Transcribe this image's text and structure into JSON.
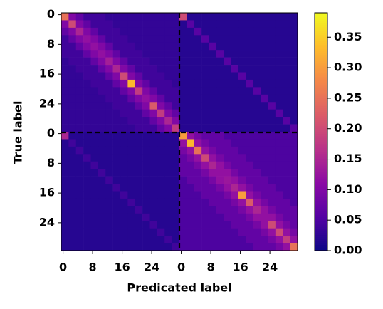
{
  "chart_data": {
    "type": "heatmap",
    "xlabel": "Predicated label",
    "ylabel": "True label",
    "xlim": [
      -0.5,
      63.5
    ],
    "ylim": [
      -0.5,
      63.5
    ],
    "cell": 2,
    "xticks": [
      0,
      8,
      16,
      24,
      {
        "value": 32,
        "label": "0"
      },
      {
        "value": 40,
        "label": "8"
      },
      {
        "value": 48,
        "label": "16"
      },
      {
        "value": 56,
        "label": "24"
      }
    ],
    "yticks": [
      0,
      8,
      16,
      24,
      {
        "value": 32,
        "label": "0"
      },
      {
        "value": 40,
        "label": "8"
      },
      {
        "value": 48,
        "label": "16"
      },
      {
        "value": 56,
        "label": "24"
      }
    ],
    "colormap": "plasma",
    "clim": [
      0,
      0.39
    ],
    "cticks": [
      {
        "value": 0,
        "label": "0.00"
      },
      {
        "value": 0.05,
        "label": "0.05"
      },
      {
        "value": 0.1,
        "label": "0.10"
      },
      {
        "value": 0.15,
        "label": "0.15"
      },
      {
        "value": 0.2,
        "label": "0.20"
      },
      {
        "value": 0.25,
        "label": "0.25"
      },
      {
        "value": 0.3,
        "label": "0.30"
      },
      {
        "value": 0.35,
        "label": "0.35"
      }
    ],
    "z": [
      [
        0.25,
        0.1,
        0.07,
        0.04,
        0.04,
        0.04,
        0.03,
        0.03,
        0.03,
        0.03,
        0.03,
        0.03,
        0.03,
        0.03,
        0.03,
        0.03,
        0.2,
        0.02,
        0.02,
        0.02,
        0.02,
        0.02,
        0.02,
        0.02,
        0.02,
        0.02,
        0.02,
        0.02,
        0.02,
        0.02,
        0.02,
        0.02
      ],
      [
        0.1,
        0.2,
        0.1,
        0.07,
        0.04,
        0.04,
        0.04,
        0.03,
        0.03,
        0.03,
        0.03,
        0.03,
        0.03,
        0.03,
        0.03,
        0.03,
        0.02,
        0.06,
        0.02,
        0.02,
        0.02,
        0.02,
        0.02,
        0.02,
        0.02,
        0.02,
        0.02,
        0.02,
        0.02,
        0.02,
        0.02,
        0.02
      ],
      [
        0.07,
        0.1,
        0.15,
        0.1,
        0.07,
        0.04,
        0.04,
        0.04,
        0.03,
        0.03,
        0.03,
        0.03,
        0.03,
        0.03,
        0.03,
        0.03,
        0.02,
        0.02,
        0.06,
        0.02,
        0.02,
        0.02,
        0.02,
        0.02,
        0.02,
        0.02,
        0.02,
        0.02,
        0.02,
        0.02,
        0.02,
        0.02
      ],
      [
        0.04,
        0.07,
        0.1,
        0.12,
        0.1,
        0.07,
        0.04,
        0.04,
        0.04,
        0.03,
        0.03,
        0.03,
        0.03,
        0.03,
        0.03,
        0.03,
        0.02,
        0.02,
        0.02,
        0.06,
        0.02,
        0.02,
        0.02,
        0.02,
        0.02,
        0.02,
        0.02,
        0.02,
        0.02,
        0.02,
        0.02,
        0.02
      ],
      [
        0.04,
        0.04,
        0.07,
        0.1,
        0.12,
        0.1,
        0.07,
        0.04,
        0.04,
        0.04,
        0.03,
        0.03,
        0.03,
        0.03,
        0.03,
        0.03,
        0.02,
        0.02,
        0.02,
        0.02,
        0.06,
        0.02,
        0.02,
        0.02,
        0.02,
        0.02,
        0.02,
        0.02,
        0.02,
        0.02,
        0.02,
        0.02
      ],
      [
        0.04,
        0.04,
        0.04,
        0.07,
        0.1,
        0.12,
        0.1,
        0.07,
        0.04,
        0.04,
        0.04,
        0.03,
        0.03,
        0.03,
        0.03,
        0.03,
        0.02,
        0.02,
        0.02,
        0.02,
        0.02,
        0.06,
        0.02,
        0.02,
        0.02,
        0.02,
        0.02,
        0.02,
        0.02,
        0.02,
        0.02,
        0.02
      ],
      [
        0.03,
        0.04,
        0.04,
        0.04,
        0.07,
        0.1,
        0.14,
        0.1,
        0.07,
        0.04,
        0.04,
        0.04,
        0.03,
        0.03,
        0.03,
        0.03,
        0.02,
        0.02,
        0.02,
        0.02,
        0.02,
        0.02,
        0.06,
        0.02,
        0.02,
        0.02,
        0.02,
        0.02,
        0.02,
        0.02,
        0.02,
        0.02
      ],
      [
        0.03,
        0.03,
        0.04,
        0.04,
        0.04,
        0.07,
        0.1,
        0.15,
        0.1,
        0.07,
        0.04,
        0.04,
        0.04,
        0.03,
        0.03,
        0.03,
        0.02,
        0.02,
        0.02,
        0.02,
        0.02,
        0.02,
        0.02,
        0.06,
        0.02,
        0.02,
        0.02,
        0.02,
        0.02,
        0.02,
        0.02,
        0.02
      ],
      [
        0.03,
        0.03,
        0.03,
        0.04,
        0.04,
        0.04,
        0.07,
        0.1,
        0.2,
        0.1,
        0.07,
        0.04,
        0.04,
        0.04,
        0.03,
        0.03,
        0.02,
        0.02,
        0.02,
        0.02,
        0.02,
        0.02,
        0.02,
        0.02,
        0.06,
        0.02,
        0.02,
        0.02,
        0.02,
        0.02,
        0.02,
        0.02
      ],
      [
        0.03,
        0.03,
        0.03,
        0.03,
        0.04,
        0.04,
        0.04,
        0.07,
        0.1,
        0.33,
        0.1,
        0.07,
        0.04,
        0.04,
        0.04,
        0.03,
        0.02,
        0.02,
        0.02,
        0.02,
        0.02,
        0.02,
        0.02,
        0.02,
        0.02,
        0.06,
        0.02,
        0.02,
        0.02,
        0.02,
        0.02,
        0.02
      ],
      [
        0.03,
        0.03,
        0.03,
        0.03,
        0.03,
        0.04,
        0.04,
        0.04,
        0.07,
        0.1,
        0.18,
        0.1,
        0.07,
        0.04,
        0.04,
        0.04,
        0.02,
        0.02,
        0.02,
        0.02,
        0.02,
        0.02,
        0.02,
        0.02,
        0.02,
        0.02,
        0.06,
        0.02,
        0.02,
        0.02,
        0.02,
        0.02
      ],
      [
        0.03,
        0.03,
        0.03,
        0.03,
        0.03,
        0.03,
        0.04,
        0.04,
        0.04,
        0.07,
        0.1,
        0.12,
        0.1,
        0.07,
        0.04,
        0.04,
        0.02,
        0.02,
        0.02,
        0.02,
        0.02,
        0.02,
        0.02,
        0.02,
        0.02,
        0.02,
        0.02,
        0.06,
        0.02,
        0.02,
        0.02,
        0.02
      ],
      [
        0.03,
        0.03,
        0.03,
        0.03,
        0.03,
        0.03,
        0.03,
        0.04,
        0.04,
        0.04,
        0.07,
        0.1,
        0.22,
        0.1,
        0.07,
        0.04,
        0.02,
        0.02,
        0.02,
        0.02,
        0.02,
        0.02,
        0.02,
        0.02,
        0.02,
        0.02,
        0.02,
        0.02,
        0.06,
        0.02,
        0.02,
        0.02
      ],
      [
        0.03,
        0.03,
        0.03,
        0.03,
        0.03,
        0.03,
        0.03,
        0.03,
        0.04,
        0.04,
        0.04,
        0.07,
        0.1,
        0.18,
        0.1,
        0.07,
        0.02,
        0.02,
        0.02,
        0.02,
        0.02,
        0.02,
        0.02,
        0.02,
        0.02,
        0.02,
        0.02,
        0.02,
        0.02,
        0.06,
        0.02,
        0.02
      ],
      [
        0.03,
        0.03,
        0.03,
        0.03,
        0.03,
        0.03,
        0.03,
        0.03,
        0.03,
        0.04,
        0.04,
        0.04,
        0.07,
        0.1,
        0.15,
        0.1,
        0.02,
        0.02,
        0.02,
        0.02,
        0.02,
        0.02,
        0.02,
        0.02,
        0.02,
        0.02,
        0.02,
        0.02,
        0.02,
        0.02,
        0.06,
        0.02
      ],
      [
        0.03,
        0.03,
        0.03,
        0.03,
        0.03,
        0.03,
        0.03,
        0.03,
        0.03,
        0.03,
        0.04,
        0.04,
        0.04,
        0.07,
        0.1,
        0.18,
        0.02,
        0.02,
        0.02,
        0.02,
        0.02,
        0.02,
        0.02,
        0.02,
        0.02,
        0.02,
        0.02,
        0.02,
        0.02,
        0.02,
        0.02,
        0.06
      ],
      [
        0.15,
        0.02,
        0.02,
        0.02,
        0.02,
        0.02,
        0.02,
        0.02,
        0.02,
        0.02,
        0.02,
        0.02,
        0.02,
        0.02,
        0.02,
        0.02,
        0.3,
        0.12,
        0.09,
        0.07,
        0.07,
        0.07,
        0.05,
        0.05,
        0.05,
        0.05,
        0.05,
        0.05,
        0.05,
        0.05,
        0.05,
        0.05
      ],
      [
        0.02,
        0.04,
        0.02,
        0.02,
        0.02,
        0.02,
        0.02,
        0.02,
        0.02,
        0.02,
        0.02,
        0.02,
        0.02,
        0.02,
        0.02,
        0.02,
        0.12,
        0.33,
        0.12,
        0.09,
        0.07,
        0.07,
        0.07,
        0.05,
        0.05,
        0.05,
        0.05,
        0.05,
        0.05,
        0.05,
        0.05,
        0.05
      ],
      [
        0.02,
        0.02,
        0.04,
        0.02,
        0.02,
        0.02,
        0.02,
        0.02,
        0.02,
        0.02,
        0.02,
        0.02,
        0.02,
        0.02,
        0.02,
        0.02,
        0.09,
        0.12,
        0.25,
        0.12,
        0.09,
        0.07,
        0.07,
        0.07,
        0.05,
        0.05,
        0.05,
        0.05,
        0.05,
        0.05,
        0.05,
        0.05
      ],
      [
        0.02,
        0.02,
        0.02,
        0.04,
        0.02,
        0.02,
        0.02,
        0.02,
        0.02,
        0.02,
        0.02,
        0.02,
        0.02,
        0.02,
        0.02,
        0.02,
        0.07,
        0.09,
        0.12,
        0.2,
        0.12,
        0.09,
        0.07,
        0.07,
        0.07,
        0.05,
        0.05,
        0.05,
        0.05,
        0.05,
        0.05,
        0.05
      ],
      [
        0.02,
        0.02,
        0.02,
        0.02,
        0.04,
        0.02,
        0.02,
        0.02,
        0.02,
        0.02,
        0.02,
        0.02,
        0.02,
        0.02,
        0.02,
        0.02,
        0.07,
        0.07,
        0.09,
        0.12,
        0.15,
        0.12,
        0.09,
        0.07,
        0.07,
        0.07,
        0.05,
        0.05,
        0.05,
        0.05,
        0.05,
        0.05
      ],
      [
        0.02,
        0.02,
        0.02,
        0.02,
        0.02,
        0.04,
        0.02,
        0.02,
        0.02,
        0.02,
        0.02,
        0.02,
        0.02,
        0.02,
        0.02,
        0.02,
        0.07,
        0.07,
        0.07,
        0.09,
        0.12,
        0.12,
        0.12,
        0.09,
        0.07,
        0.07,
        0.07,
        0.05,
        0.05,
        0.05,
        0.05,
        0.05
      ],
      [
        0.02,
        0.02,
        0.02,
        0.02,
        0.02,
        0.02,
        0.04,
        0.02,
        0.02,
        0.02,
        0.02,
        0.02,
        0.02,
        0.02,
        0.02,
        0.02,
        0.05,
        0.07,
        0.07,
        0.07,
        0.09,
        0.12,
        0.13,
        0.12,
        0.09,
        0.07,
        0.07,
        0.07,
        0.05,
        0.05,
        0.05,
        0.05
      ],
      [
        0.02,
        0.02,
        0.02,
        0.02,
        0.02,
        0.02,
        0.02,
        0.04,
        0.02,
        0.02,
        0.02,
        0.02,
        0.02,
        0.02,
        0.02,
        0.02,
        0.05,
        0.05,
        0.07,
        0.07,
        0.07,
        0.09,
        0.12,
        0.15,
        0.12,
        0.09,
        0.07,
        0.07,
        0.07,
        0.05,
        0.05,
        0.05
      ],
      [
        0.02,
        0.02,
        0.02,
        0.02,
        0.02,
        0.02,
        0.02,
        0.02,
        0.04,
        0.02,
        0.02,
        0.02,
        0.02,
        0.02,
        0.02,
        0.02,
        0.05,
        0.05,
        0.05,
        0.07,
        0.07,
        0.07,
        0.09,
        0.12,
        0.3,
        0.12,
        0.09,
        0.07,
        0.07,
        0.07,
        0.05,
        0.05
      ],
      [
        0.02,
        0.02,
        0.02,
        0.02,
        0.02,
        0.02,
        0.02,
        0.02,
        0.02,
        0.04,
        0.02,
        0.02,
        0.02,
        0.02,
        0.02,
        0.02,
        0.05,
        0.05,
        0.05,
        0.05,
        0.07,
        0.07,
        0.07,
        0.09,
        0.12,
        0.22,
        0.12,
        0.09,
        0.07,
        0.07,
        0.07,
        0.05
      ],
      [
        0.02,
        0.02,
        0.02,
        0.02,
        0.02,
        0.02,
        0.02,
        0.02,
        0.02,
        0.02,
        0.04,
        0.02,
        0.02,
        0.02,
        0.02,
        0.02,
        0.05,
        0.05,
        0.05,
        0.05,
        0.05,
        0.07,
        0.07,
        0.07,
        0.09,
        0.12,
        0.15,
        0.12,
        0.09,
        0.07,
        0.07,
        0.07
      ],
      [
        0.02,
        0.02,
        0.02,
        0.02,
        0.02,
        0.02,
        0.02,
        0.02,
        0.02,
        0.02,
        0.02,
        0.04,
        0.02,
        0.02,
        0.02,
        0.02,
        0.05,
        0.05,
        0.05,
        0.05,
        0.05,
        0.05,
        0.07,
        0.07,
        0.07,
        0.09,
        0.12,
        0.12,
        0.12,
        0.09,
        0.07,
        0.07
      ],
      [
        0.02,
        0.02,
        0.02,
        0.02,
        0.02,
        0.02,
        0.02,
        0.02,
        0.02,
        0.02,
        0.02,
        0.02,
        0.04,
        0.02,
        0.02,
        0.02,
        0.05,
        0.05,
        0.05,
        0.05,
        0.05,
        0.05,
        0.05,
        0.07,
        0.07,
        0.07,
        0.09,
        0.12,
        0.2,
        0.12,
        0.09,
        0.07
      ],
      [
        0.02,
        0.02,
        0.02,
        0.02,
        0.02,
        0.02,
        0.02,
        0.02,
        0.02,
        0.02,
        0.02,
        0.02,
        0.02,
        0.04,
        0.02,
        0.02,
        0.05,
        0.05,
        0.05,
        0.05,
        0.05,
        0.05,
        0.05,
        0.05,
        0.07,
        0.07,
        0.07,
        0.09,
        0.12,
        0.2,
        0.12,
        0.09
      ],
      [
        0.02,
        0.02,
        0.02,
        0.02,
        0.02,
        0.02,
        0.02,
        0.02,
        0.02,
        0.02,
        0.02,
        0.02,
        0.02,
        0.02,
        0.04,
        0.02,
        0.05,
        0.05,
        0.05,
        0.05,
        0.05,
        0.05,
        0.05,
        0.05,
        0.05,
        0.07,
        0.07,
        0.07,
        0.09,
        0.12,
        0.18,
        0.12
      ],
      [
        0.02,
        0.02,
        0.02,
        0.02,
        0.02,
        0.02,
        0.02,
        0.02,
        0.02,
        0.02,
        0.02,
        0.02,
        0.02,
        0.02,
        0.02,
        0.04,
        0.05,
        0.05,
        0.05,
        0.05,
        0.05,
        0.05,
        0.05,
        0.05,
        0.05,
        0.05,
        0.07,
        0.07,
        0.07,
        0.09,
        0.12,
        0.25
      ]
    ]
  }
}
